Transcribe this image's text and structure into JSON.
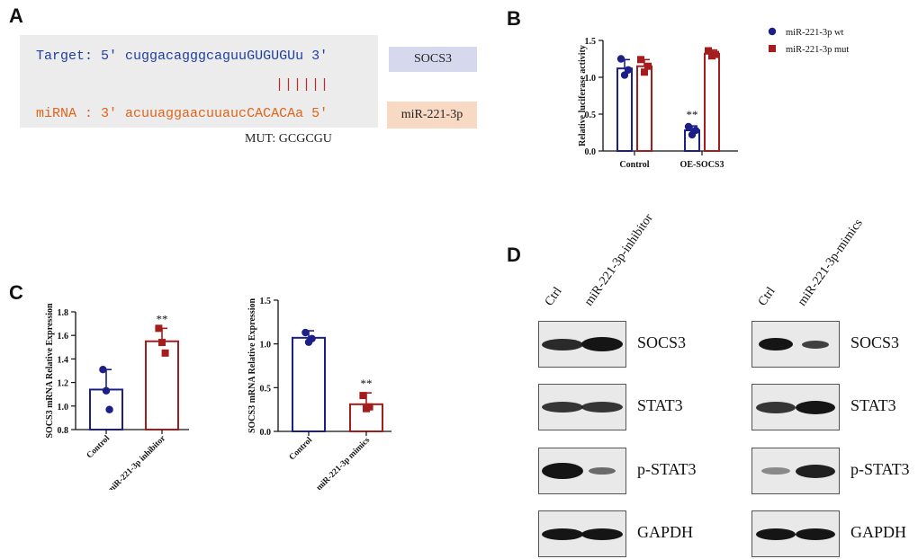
{
  "panels": {
    "A": "A",
    "B": "B",
    "C": "C",
    "D": "D"
  },
  "panelA": {
    "target_prefix": "Target: 5' ",
    "target_lower": "cuggacagggcaguu",
    "target_upper": "GUGUGU",
    "target_suffix": "u 3'",
    "bonds": "||||||",
    "mirna_prefix": "miRNA : 3' ",
    "mirna_lower": "acuuaggaacuuauc",
    "mirna_upper": "CACACA",
    "mirna_suffix": "a 5'",
    "target_tag": "SOCS3",
    "mirna_tag": "miR-221-3p",
    "mut_label": "MUT: GCGCGU",
    "colors": {
      "target": "#1f3f9e",
      "mirna": "#e0651c",
      "bonds": "#c0282a",
      "target_tag_bg": "#d6d9ee",
      "mirna_tag_bg": "#f8d9c4"
    }
  },
  "chart_data": [
    {
      "id": "B",
      "type": "bar",
      "categories": [
        "Control",
        "OE-SOCS3"
      ],
      "ylabel": "Relative luciferase activity",
      "ylim": [
        0,
        1.5
      ],
      "yticks": [
        "0.0",
        "0.5",
        "1.0",
        "1.5"
      ],
      "legend_position": "top-right",
      "series": [
        {
          "name": "miR-221-3p wt",
          "color": "#1b1f86",
          "values": [
            1.12,
            0.28
          ],
          "errors": [
            0.12,
            0.06
          ],
          "points": [
            [
              1.25,
              1.03,
              1.1
            ],
            [
              0.33,
              0.22,
              0.28
            ]
          ],
          "marker": "circle"
        },
        {
          "name": "miR-221-3p mut",
          "color": "#a51c1c",
          "values": [
            1.15,
            1.32
          ],
          "errors": [
            0.09,
            0.05
          ],
          "points": [
            [
              1.24,
              1.07,
              1.15
            ],
            [
              1.36,
              1.29,
              1.31
            ]
          ],
          "marker": "square"
        }
      ],
      "annotations": [
        {
          "category": 1,
          "series": 0,
          "text": "**"
        }
      ]
    },
    {
      "id": "C1",
      "type": "bar",
      "categories": [
        "Control",
        "miR-221-3p inhibitor"
      ],
      "ylabel": "SOCS3 mRNA Relative Expression",
      "ylim": [
        0.8,
        1.8
      ],
      "yticks": [
        "0.8",
        "1.0",
        "1.2",
        "1.4",
        "1.6",
        "1.8"
      ],
      "colors": [
        "#1b1f86",
        "#a51c1c"
      ],
      "values": [
        1.14,
        1.55
      ],
      "errors": [
        0.17,
        0.11
      ],
      "points": [
        [
          1.31,
          1.13,
          0.97
        ],
        [
          1.66,
          1.54,
          1.45
        ]
      ],
      "markers": [
        "circle",
        "square"
      ],
      "annotations": [
        {
          "category": 1,
          "text": "**"
        }
      ]
    },
    {
      "id": "C2",
      "type": "bar",
      "categories": [
        "Control",
        "miR-221-3p mimics"
      ],
      "ylabel": "SOCS3 mRNA Relative Expression",
      "ylim": [
        0,
        1.5
      ],
      "yticks": [
        "0.0",
        "0.5",
        "1.0",
        "1.5"
      ],
      "colors": [
        "#1b1f86",
        "#a51c1c"
      ],
      "values": [
        1.07,
        0.31
      ],
      "errors": [
        0.08,
        0.13
      ],
      "points": [
        [
          1.13,
          1.02,
          1.06
        ],
        [
          0.41,
          0.26,
          0.28
        ]
      ],
      "markers": [
        "circle",
        "square"
      ],
      "annotations": [
        {
          "category": 1,
          "text": "**"
        }
      ]
    }
  ],
  "panelD": {
    "left": {
      "lanes": [
        "Ctrl",
        "miR-221-3p-inhibitor"
      ],
      "labels": [
        "SOCS3",
        "STAT3",
        "p-STAT3",
        "GAPDH"
      ]
    },
    "right": {
      "lanes": [
        "Ctrl",
        "miR-221-3p-mimics"
      ],
      "labels": [
        "SOCS3",
        "STAT3",
        "p-STAT3",
        "GAPDH"
      ]
    }
  }
}
